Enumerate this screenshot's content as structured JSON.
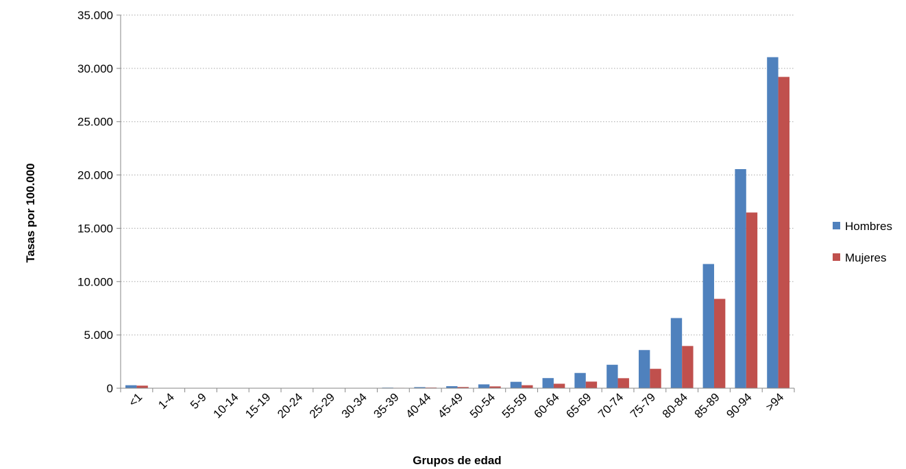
{
  "chart_data": {
    "type": "bar",
    "title": "",
    "xlabel": "Grupos de edad",
    "ylabel": "Tasas por  100.000",
    "ylim": [
      0,
      35000
    ],
    "yticks": [
      0,
      5000,
      10000,
      15000,
      20000,
      25000,
      30000,
      35000
    ],
    "ytick_labels": [
      "0",
      "5.000",
      "10.000",
      "15.000",
      "20.000",
      "25.000",
      "30.000",
      "35.000"
    ],
    "grid": true,
    "legend_position": "right",
    "categories": [
      "<1",
      "1-4",
      "5-9",
      "10-14",
      "15-19",
      "20-24",
      "25-29",
      "30-34",
      "35-39",
      "40-44",
      "45-49",
      "50-54",
      "55-59",
      "60-64",
      "65-69",
      "70-74",
      "75-79",
      "80-84",
      "85-89",
      "90-94",
      ">94"
    ],
    "series": [
      {
        "name": "Hombres",
        "color": "#4F81BD",
        "values": [
          280,
          10,
          8,
          8,
          10,
          12,
          18,
          30,
          55,
          100,
          190,
          360,
          600,
          950,
          1430,
          2200,
          3580,
          6580,
          11650,
          20550,
          31050
        ]
      },
      {
        "name": "Mujeres",
        "color": "#C0504D",
        "values": [
          240,
          8,
          6,
          6,
          8,
          10,
          12,
          20,
          35,
          60,
          110,
          170,
          280,
          420,
          620,
          940,
          1820,
          3960,
          8380,
          16480,
          29200
        ]
      }
    ]
  }
}
